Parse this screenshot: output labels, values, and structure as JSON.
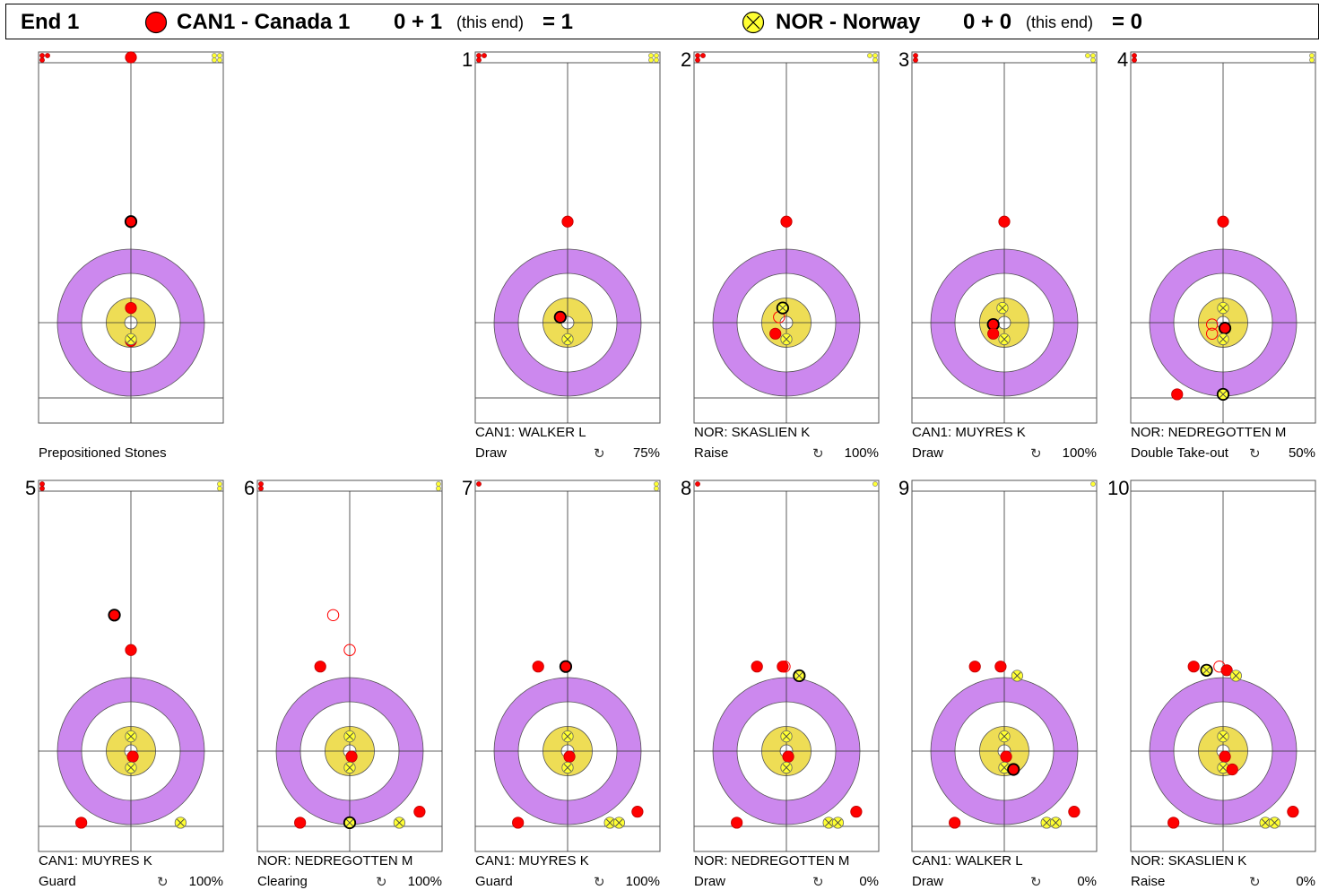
{
  "header": {
    "end_label": "End 1",
    "team1": {
      "name": "CAN1 - Canada 1",
      "score_prev": "0 + 1",
      "this_end": "(this end)",
      "total": "= 1",
      "color": "#ff0000"
    },
    "team2": {
      "name": "NOR - Norway",
      "score_prev": "0 + 0",
      "this_end": "(this end)",
      "total": "= 0",
      "color": "#ffff33"
    }
  },
  "colors": {
    "red": "#ff0000",
    "yellow": "#ffff33",
    "twelve_foot": "#cc88ee",
    "button_ring": "#eedd55",
    "white": "#ffffff"
  },
  "rotation_icon": "↻",
  "panels": [
    {
      "number": "",
      "player": "",
      "shot": "Prepositioned Stones",
      "pct": "",
      "red_bank": 3,
      "yellow_bank": 4,
      "stones": [
        {
          "t": "r",
          "x": 0,
          "y": 8.5,
          "mv": 1
        },
        {
          "t": "r",
          "x": 0,
          "y": 0.8
        },
        {
          "t": "r",
          "x": 0,
          "y": -1.0
        },
        {
          "t": "r",
          "x": 0,
          "y": 5.5,
          "o": 1
        },
        {
          "t": "y",
          "x": 0,
          "y": -0.9
        }
      ]
    },
    {
      "number": "1",
      "player": "CAN1: WALKER L",
      "shot": "Draw",
      "pct": "75%",
      "red_bank": 3,
      "yellow_bank": 4,
      "stones": [
        {
          "t": "r",
          "x": 0,
          "y": 5.5
        },
        {
          "t": "r",
          "x": -0.4,
          "y": 0.3,
          "o": 1
        },
        {
          "t": "y",
          "x": 0,
          "y": -0.9
        }
      ]
    },
    {
      "number": "2",
      "player": "NOR: SKASLIEN K",
      "shot": "Raise",
      "pct": "100%",
      "red_bank": 3,
      "yellow_bank": 3,
      "stones": [
        {
          "t": "r",
          "x": 0,
          "y": 5.5
        },
        {
          "t": "rh",
          "x": -0.4,
          "y": 0.3
        },
        {
          "t": "r",
          "x": -0.6,
          "y": -0.6
        },
        {
          "t": "y",
          "x": -0.2,
          "y": 0.8,
          "o": 1
        },
        {
          "t": "y",
          "x": 0,
          "y": -0.9
        }
      ]
    },
    {
      "number": "3",
      "player": "CAN1: MUYRES K",
      "shot": "Draw",
      "pct": "100%",
      "red_bank": 2,
      "yellow_bank": 3,
      "stones": [
        {
          "t": "r",
          "x": 0,
          "y": 5.5
        },
        {
          "t": "r",
          "x": -0.6,
          "y": -0.1,
          "o": 1
        },
        {
          "t": "r",
          "x": -0.6,
          "y": -0.6
        },
        {
          "t": "y",
          "x": -0.1,
          "y": 0.8
        },
        {
          "t": "y",
          "x": 0,
          "y": -0.9
        }
      ]
    },
    {
      "number": "4",
      "player": "NOR: NEDREGOTTEN M",
      "shot": "Double Take-out",
      "pct": "50%",
      "red_bank": 2,
      "yellow_bank": 2,
      "stones": [
        {
          "t": "r",
          "x": 0,
          "y": 5.5
        },
        {
          "t": "rh",
          "x": -0.6,
          "y": -0.1
        },
        {
          "t": "rh",
          "x": -0.6,
          "y": -0.6
        },
        {
          "t": "r",
          "x": 0.1,
          "y": -0.3,
          "o": 1
        },
        {
          "t": "y",
          "x": 0,
          "y": 0.8
        },
        {
          "t": "y",
          "x": 0,
          "y": -0.9
        },
        {
          "t": "r",
          "x": -2.5,
          "y": -3.9
        },
        {
          "t": "y",
          "x": 0,
          "y": -3.9,
          "o": 1
        }
      ]
    },
    {
      "number": "5",
      "player": "CAN1: MUYRES K",
      "shot": "Guard",
      "pct": "100%",
      "red_bank": 2,
      "yellow_bank": 2,
      "stones": [
        {
          "t": "r",
          "x": 0,
          "y": 5.5
        },
        {
          "t": "r",
          "x": -0.9,
          "y": 7.4,
          "o": 1
        },
        {
          "t": "r",
          "x": 0.1,
          "y": -0.3
        },
        {
          "t": "y",
          "x": 0,
          "y": 0.8
        },
        {
          "t": "y",
          "x": 0,
          "y": -0.9
        },
        {
          "t": "r",
          "x": -2.7,
          "y": -3.9
        },
        {
          "t": "y",
          "x": 2.7,
          "y": -3.9
        }
      ]
    },
    {
      "number": "6",
      "player": "NOR: NEDREGOTTEN M",
      "shot": "Clearing",
      "pct": "100%",
      "red_bank": 2,
      "yellow_bank": 2,
      "stones": [
        {
          "t": "rh",
          "x": 0,
          "y": 5.5
        },
        {
          "t": "rh",
          "x": -0.9,
          "y": 7.4
        },
        {
          "t": "r",
          "x": -1.6,
          "y": 4.6
        },
        {
          "t": "r",
          "x": 0.1,
          "y": -0.3
        },
        {
          "t": "y",
          "x": 0,
          "y": 0.8
        },
        {
          "t": "y",
          "x": 0,
          "y": -0.9
        },
        {
          "t": "r",
          "x": -2.7,
          "y": -3.9
        },
        {
          "t": "y",
          "x": 0,
          "y": -3.9,
          "o": 1
        },
        {
          "t": "y",
          "x": 2.7,
          "y": -3.9
        },
        {
          "t": "r",
          "x": 3.8,
          "y": -3.3
        }
      ]
    },
    {
      "number": "7",
      "player": "CAN1: MUYRES K",
      "shot": "Guard",
      "pct": "100%",
      "red_bank": 1,
      "yellow_bank": 2,
      "stones": [
        {
          "t": "r",
          "x": -1.6,
          "y": 4.6
        },
        {
          "t": "r",
          "x": -0.1,
          "y": 4.6,
          "o": 1
        },
        {
          "t": "r",
          "x": 0.1,
          "y": -0.3
        },
        {
          "t": "y",
          "x": 0,
          "y": 0.8
        },
        {
          "t": "y",
          "x": 0,
          "y": -0.9
        },
        {
          "t": "r",
          "x": -2.7,
          "y": -3.9
        },
        {
          "t": "y",
          "x": 2.3,
          "y": -3.9
        },
        {
          "t": "y",
          "x": 2.8,
          "y": -3.9
        },
        {
          "t": "r",
          "x": 3.8,
          "y": -3.3
        }
      ]
    },
    {
      "number": "8",
      "player": "NOR: NEDREGOTTEN M",
      "shot": "Draw",
      "pct": "0%",
      "red_bank": 1,
      "yellow_bank": 1,
      "stones": [
        {
          "t": "r",
          "x": -1.6,
          "y": 4.6
        },
        {
          "t": "r",
          "x": -0.2,
          "y": 4.6
        },
        {
          "t": "rh",
          "x": -0.1,
          "y": 4.6
        },
        {
          "t": "y",
          "x": 0.7,
          "y": 4.1,
          "o": 1
        },
        {
          "t": "r",
          "x": 0.1,
          "y": -0.3
        },
        {
          "t": "y",
          "x": 0,
          "y": 0.8
        },
        {
          "t": "y",
          "x": 0,
          "y": -0.9
        },
        {
          "t": "r",
          "x": -2.7,
          "y": -3.9
        },
        {
          "t": "y",
          "x": 2.3,
          "y": -3.9
        },
        {
          "t": "y",
          "x": 2.8,
          "y": -3.9
        },
        {
          "t": "r",
          "x": 3.8,
          "y": -3.3
        }
      ]
    },
    {
      "number": "9",
      "player": "CAN1: WALKER L",
      "shot": "Draw",
      "pct": "0%",
      "red_bank": 0,
      "yellow_bank": 1,
      "stones": [
        {
          "t": "r",
          "x": -1.6,
          "y": 4.6
        },
        {
          "t": "r",
          "x": -0.2,
          "y": 4.6
        },
        {
          "t": "y",
          "x": 0.7,
          "y": 4.1
        },
        {
          "t": "r",
          "x": 0.1,
          "y": -0.3
        },
        {
          "t": "y",
          "x": 0,
          "y": 0.8
        },
        {
          "t": "y",
          "x": 0,
          "y": -0.9
        },
        {
          "t": "r",
          "x": 0.5,
          "y": -1.0,
          "o": 1
        },
        {
          "t": "r",
          "x": -2.7,
          "y": -3.9
        },
        {
          "t": "y",
          "x": 2.3,
          "y": -3.9
        },
        {
          "t": "y",
          "x": 2.8,
          "y": -3.9
        },
        {
          "t": "r",
          "x": 3.8,
          "y": -3.3
        }
      ]
    },
    {
      "number": "10",
      "player": "NOR: SKASLIEN K",
      "shot": "Raise",
      "pct": "0%",
      "red_bank": 0,
      "yellow_bank": 0,
      "stones": [
        {
          "t": "r",
          "x": -1.6,
          "y": 4.6
        },
        {
          "t": "y",
          "x": -0.9,
          "y": 4.4,
          "o": 1
        },
        {
          "t": "rh",
          "x": -0.2,
          "y": 4.6
        },
        {
          "t": "r",
          "x": 0.2,
          "y": 4.4
        },
        {
          "t": "y",
          "x": 0.7,
          "y": 4.1
        },
        {
          "t": "r",
          "x": 0.1,
          "y": -0.3
        },
        {
          "t": "y",
          "x": 0,
          "y": 0.8
        },
        {
          "t": "y",
          "x": 0,
          "y": -0.9
        },
        {
          "t": "r",
          "x": 0.5,
          "y": -1.0
        },
        {
          "t": "r",
          "x": -2.7,
          "y": -3.9
        },
        {
          "t": "y",
          "x": 2.3,
          "y": -3.9
        },
        {
          "t": "y",
          "x": 2.8,
          "y": -3.9
        },
        {
          "t": "r",
          "x": 3.8,
          "y": -3.3
        }
      ]
    }
  ]
}
